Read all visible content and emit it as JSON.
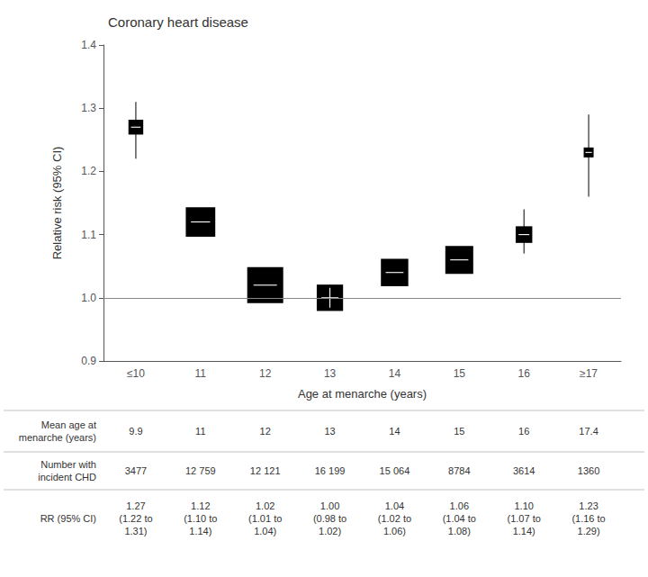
{
  "chart_data": {
    "type": "forest",
    "title": "Coronary heart disease",
    "x_label": "Age at menarche (years)",
    "y_label": "Relative risk (95% CI)",
    "categories": [
      "≤10",
      "11",
      "12",
      "13",
      "14",
      "15",
      "16",
      "≥17"
    ],
    "values": [
      1.27,
      1.12,
      1.02,
      1.0,
      1.04,
      1.06,
      1.1,
      1.23
    ],
    "ci_low": [
      1.22,
      1.1,
      1.01,
      0.98,
      1.02,
      1.04,
      1.07,
      1.16
    ],
    "ci_high": [
      1.31,
      1.14,
      1.04,
      1.02,
      1.06,
      1.08,
      1.14,
      1.29
    ],
    "color": "#000000",
    "reference_line": 1.0,
    "ylim": [
      0.9,
      1.4
    ],
    "yticks": [
      0.9,
      {
        "value": 1.0,
        "label": "1.0"
      },
      1.1,
      1.2,
      1.3,
      1.4
    ],
    "grid": false,
    "table": {
      "row_labels": [
        "Mean age at\nmenarche (years)",
        "Number with\nincident CHD",
        "RR (95% CI)"
      ],
      "rows": [
        [
          "9.9",
          "11",
          "12",
          "13",
          "14",
          "15",
          "16",
          "17.4"
        ],
        [
          "3477",
          "12 759",
          "12 121",
          "16 199",
          "15 064",
          "8784",
          "3614",
          "1360"
        ],
        [
          "1.27\n(1.22 to\n1.31)",
          "1.12\n(1.10 to\n1.14)",
          "1.02\n(1.01 to\n1.04)",
          "1.00\n(0.98 to\n1.02)",
          "1.04\n(1.02 to\n1.06)",
          "1.06\n(1.04 to\n1.08)",
          "1.10\n(1.07 to\n1.14)",
          "1.23\n(1.16 to\n1.29)"
        ]
      ]
    }
  }
}
